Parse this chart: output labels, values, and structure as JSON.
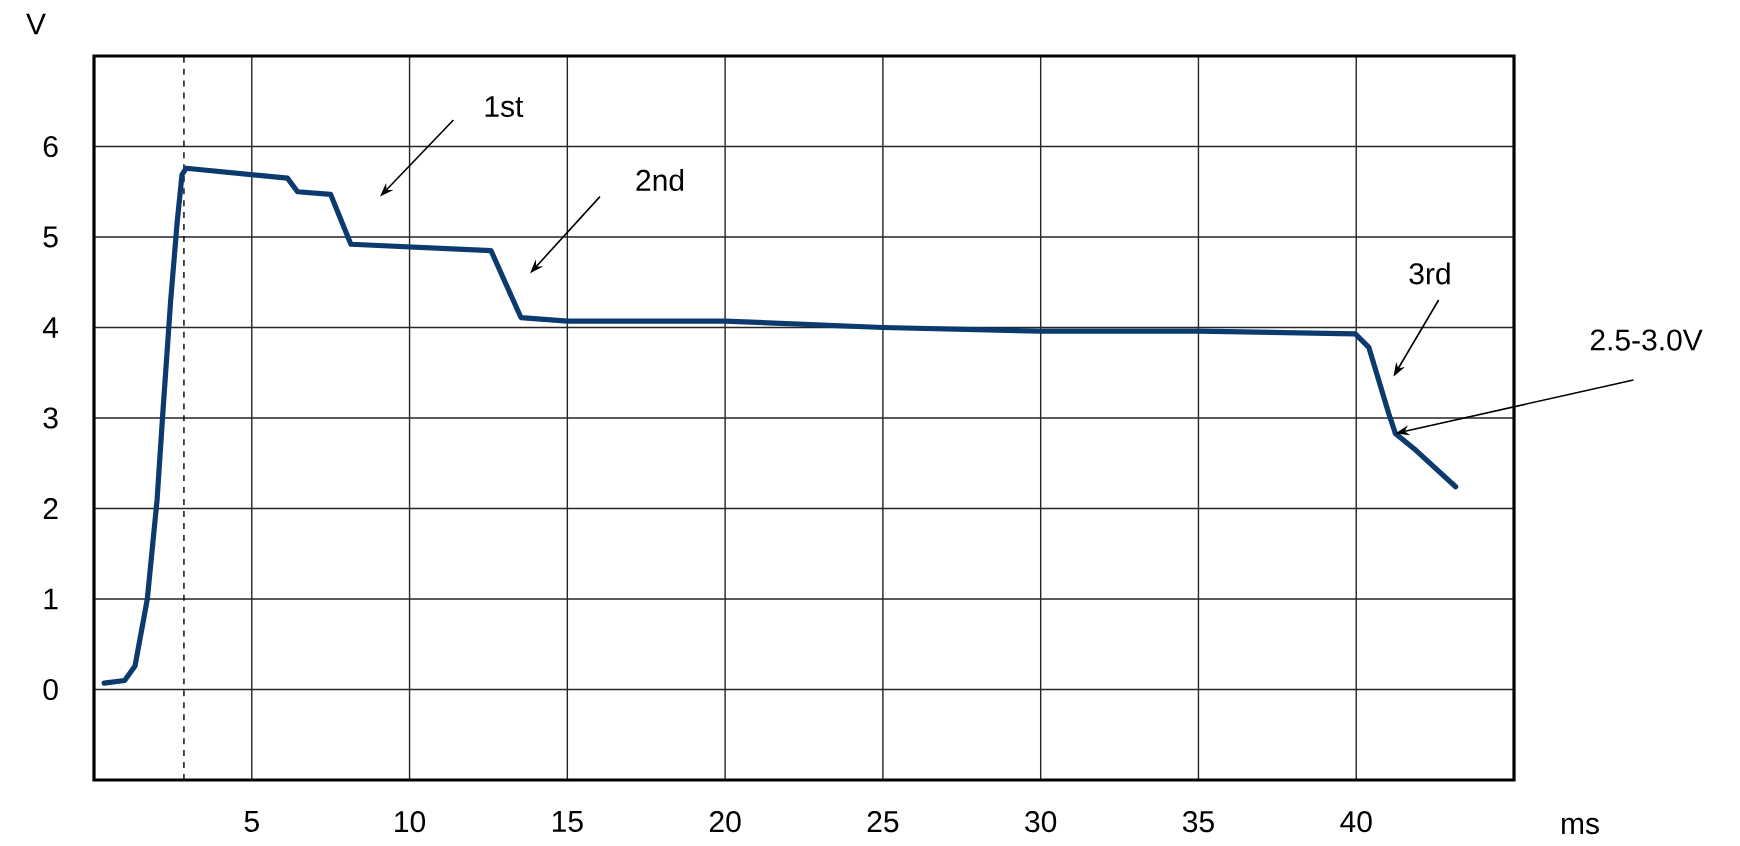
{
  "chart_data": {
    "type": "line",
    "xlabel": "ms",
    "ylabel": "V",
    "color": "#0b3a6e",
    "marker": "none",
    "line_style": "solid",
    "x": [
      0.32,
      0.97,
      1.3,
      1.69,
      2.0,
      2.18,
      2.43,
      2.64,
      2.79,
      2.92,
      6.13,
      6.45,
      7.5,
      8.14,
      12.58,
      13.53,
      15,
      20,
      25,
      30,
      35,
      39.97,
      40.4,
      41.03,
      41.24,
      41.9,
      43.15
    ],
    "values": [
      0.07,
      0.1,
      0.26,
      1.0,
      2.1,
      3.05,
      4.3,
      5.18,
      5.69,
      5.76,
      5.65,
      5.5,
      5.47,
      4.92,
      4.85,
      4.11,
      4.07,
      4.07,
      4.0,
      3.96,
      3.96,
      3.93,
      3.78,
      3.05,
      2.83,
      2.64,
      2.24
    ],
    "xlim": [
      0,
      45
    ],
    "ylim": [
      -1,
      7
    ],
    "xticks": [
      5,
      10,
      15,
      20,
      25,
      30,
      35,
      40
    ],
    "yticks": [
      0,
      1,
      2,
      3,
      4,
      5,
      6
    ],
    "grid": true,
    "ref_lines": [
      {
        "axis": "x",
        "value": 2.85,
        "line_style": "dashed",
        "color": "#000000"
      }
    ],
    "annotations": [
      "1st",
      "2nd",
      "3rd",
      {
        "text": "2.5-3.0V",
        "x": 41.24,
        "y": 2.83
      }
    ]
  }
}
